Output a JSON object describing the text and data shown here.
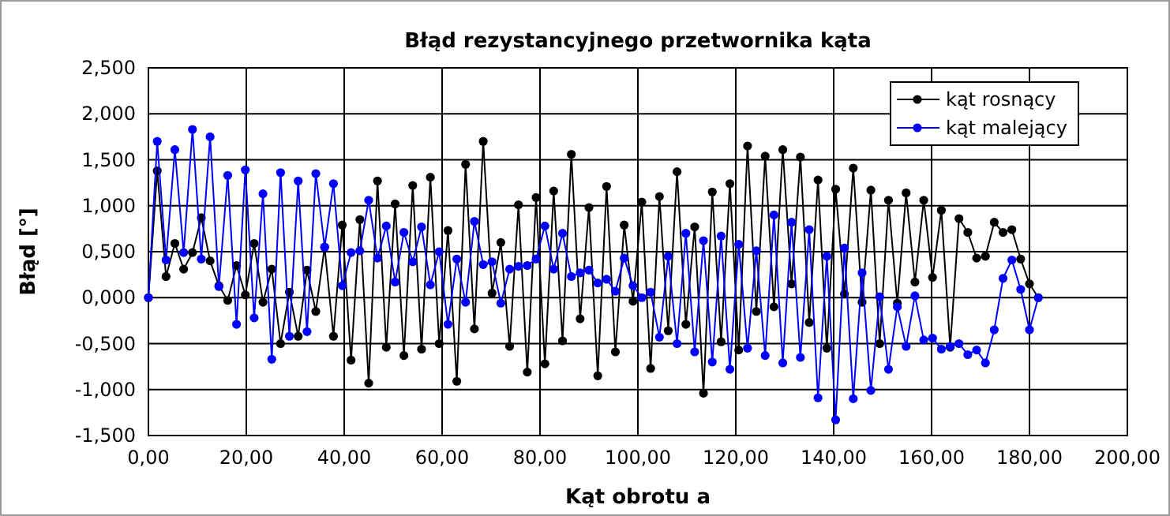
{
  "chart_data": {
    "type": "line",
    "title": "Błąd rezystancyjnego przetwornika kąta",
    "xlabel": "Kąt obrotu a",
    "ylabel": "Błąd [°]",
    "x": [
      0,
      1.8,
      3.6,
      5.4,
      7.2,
      9,
      10.8,
      12.6,
      14.4,
      16.2,
      18,
      19.8,
      21.6,
      23.4,
      25.2,
      27,
      28.8,
      30.6,
      32.4,
      34.2,
      36,
      37.8,
      39.6,
      41.4,
      43.2,
      45,
      46.8,
      48.6,
      50.4,
      52.2,
      54,
      55.8,
      57.6,
      59.4,
      61.2,
      63,
      64.8,
      66.6,
      68.4,
      70.2,
      72,
      73.8,
      75.6,
      77.4,
      79.2,
      81,
      82.8,
      84.6,
      86.4,
      88.2,
      90,
      91.8,
      93.6,
      95.4,
      97.2,
      99,
      100.8,
      102.6,
      104.4,
      106.2,
      108,
      109.8,
      111.6,
      113.4,
      115.2,
      117,
      118.8,
      120.6,
      122.4,
      124.2,
      126,
      127.8,
      129.6,
      131.4,
      133.2,
      135,
      136.8,
      138.6,
      140.4,
      142.2,
      144,
      145.8,
      147.6,
      149.4,
      151.2,
      153,
      154.8,
      156.6,
      158.4,
      160.2,
      162,
      163.8,
      165.6,
      167.4,
      169.2,
      171,
      172.8,
      174.6,
      176.4,
      178.2,
      180,
      181.8
    ],
    "series": [
      {
        "name": "kąt rosnący",
        "color": "#000000",
        "values": [
          0,
          1.38,
          0.23,
          0.59,
          0.31,
          0.49,
          0.87,
          0.4,
          0.13,
          -0.03,
          0.35,
          0.03,
          0.59,
          -0.05,
          0.31,
          -0.5,
          0.06,
          -0.42,
          0.3,
          -0.15,
          0.55,
          -0.42,
          0.79,
          -0.68,
          0.85,
          -0.93,
          1.27,
          -0.54,
          1.02,
          -0.63,
          1.22,
          -0.56,
          1.31,
          -0.5,
          0.73,
          -0.91,
          1.45,
          -0.34,
          1.7,
          0.05,
          0.6,
          -0.53,
          1.01,
          -0.81,
          1.09,
          -0.72,
          1.16,
          -0.47,
          1.56,
          -0.23,
          0.98,
          -0.85,
          1.21,
          -0.59,
          0.79,
          -0.04,
          1.04,
          -0.77,
          1.1,
          -0.36,
          1.37,
          -0.29,
          0.77,
          -1.04,
          1.15,
          -0.48,
          1.24,
          -0.57,
          1.65,
          -0.15,
          1.54,
          -0.1,
          1.61,
          0.15,
          1.53,
          -0.27,
          1.28,
          -0.55,
          1.18,
          0.04,
          1.41,
          -0.05,
          1.17,
          -0.5,
          1.06,
          -0.06,
          1.14,
          0.17,
          1.06,
          0.22,
          0.95,
          -0.54,
          0.86,
          0.71,
          0.43,
          0.45,
          0.82,
          0.71,
          0.74,
          0.42,
          0.15,
          0
        ]
      },
      {
        "name": "kąt malejący",
        "color": "#0000ff",
        "values": [
          0,
          1.7,
          0.41,
          1.61,
          0.49,
          1.83,
          0.42,
          1.75,
          0.12,
          1.33,
          -0.29,
          1.39,
          -0.22,
          1.13,
          -0.67,
          1.36,
          -0.42,
          1.27,
          -0.37,
          1.35,
          0.55,
          1.24,
          0.13,
          0.49,
          0.51,
          1.06,
          0.43,
          0.78,
          0.17,
          0.71,
          0.39,
          0.77,
          0.14,
          0.5,
          -0.29,
          0.42,
          -0.05,
          0.83,
          0.36,
          0.39,
          -0.06,
          0.31,
          0.34,
          0.35,
          0.42,
          0.78,
          0.31,
          0.7,
          0.23,
          0.27,
          0.3,
          0.16,
          0.2,
          0.07,
          0.43,
          0.13,
          0.0,
          0.06,
          -0.43,
          0.45,
          -0.5,
          0.7,
          -0.59,
          0.62,
          -0.7,
          0.67,
          -0.78,
          0.58,
          -0.55,
          0.51,
          -0.63,
          0.9,
          -0.71,
          0.82,
          -0.65,
          0.74,
          -1.09,
          0.45,
          -1.33,
          0.54,
          -1.1,
          0.27,
          -1.01,
          0.01,
          -0.78,
          -0.1,
          -0.53,
          0.02,
          -0.46,
          -0.44,
          -0.56,
          -0.53,
          -0.5,
          -0.62,
          -0.57,
          -0.71,
          -0.35,
          0.21,
          0.41,
          0.09,
          -0.35,
          0
        ]
      }
    ],
    "xlim": [
      0,
      200
    ],
    "xticks": [
      {
        "value": 0,
        "label": "0,00"
      },
      {
        "value": 20,
        "label": "20,00"
      },
      {
        "value": 40,
        "label": "40,00"
      },
      {
        "value": 60,
        "label": "60,00"
      },
      {
        "value": 80,
        "label": "80,00"
      },
      {
        "value": 100,
        "label": "100,00"
      },
      {
        "value": 120,
        "label": "120,00"
      },
      {
        "value": 140,
        "label": "140,00"
      },
      {
        "value": 160,
        "label": "160,00"
      },
      {
        "value": 180,
        "label": "180,00"
      },
      {
        "value": 200,
        "label": "200,00"
      }
    ],
    "ylim": [
      -1.5,
      2.5
    ],
    "yticks": [
      {
        "value": -1.5,
        "label": "-1,500"
      },
      {
        "value": -1,
        "label": "-1,000"
      },
      {
        "value": -0.5,
        "label": "-0,500"
      },
      {
        "value": 0,
        "label": "0,000"
      },
      {
        "value": 0.5,
        "label": "0,500"
      },
      {
        "value": 1,
        "label": "1,000"
      },
      {
        "value": 1.5,
        "label": "1,500"
      },
      {
        "value": 2,
        "label": "2,000"
      },
      {
        "value": 2.5,
        "label": "2,500"
      }
    ],
    "grid": true,
    "legend": "top right",
    "marker": "circle",
    "line_style": "solid"
  }
}
